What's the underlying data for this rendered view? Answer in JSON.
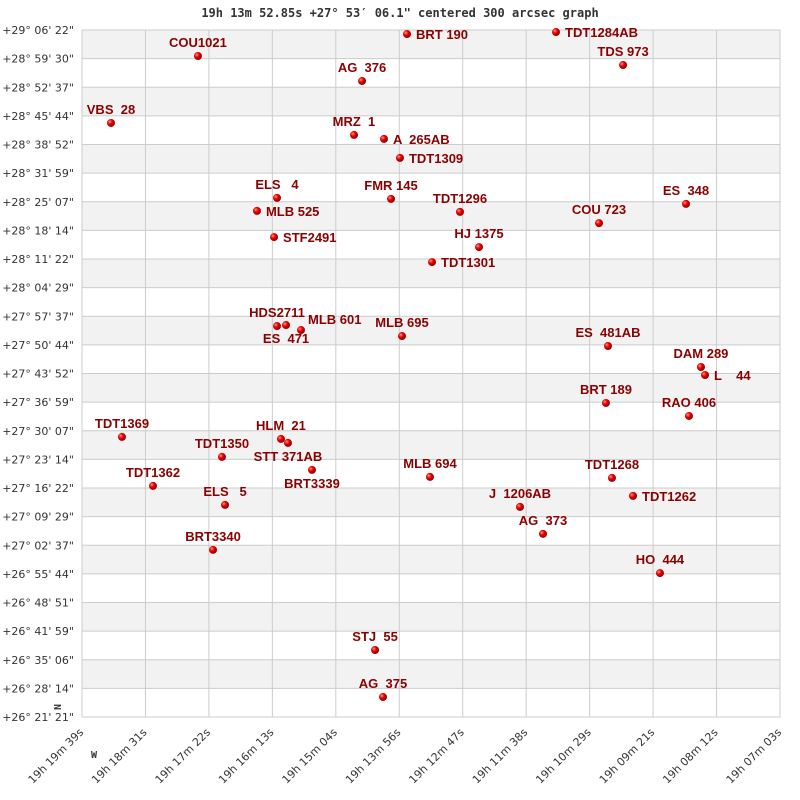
{
  "chart_data": {
    "type": "scatter",
    "title": "19h 13m 52.85s +27° 53′ 06.1\" centered 300 arcsec graph",
    "xlabel": "",
    "ylabel": "",
    "x_axis": "right ascension",
    "x_reversed": true,
    "xlim": [
      "19h19m39s",
      "19h07m03s"
    ],
    "ylim_deg": [
      26.3558,
      29.1061
    ],
    "grid": true,
    "striped_rows": true,
    "x_tick_labels": [
      "19h 19m 39s",
      "19h 18m 31s",
      "19h 17m 22s",
      "19h 16m 13s",
      "19h 15m 04s",
      "19h 13m 56s",
      "19h 12m 47s",
      "19h 11m 38s",
      "19h 10m 29s",
      "19h 09m 21s",
      "19h 08m 12s",
      "19h 07m 03s"
    ],
    "y_tick_labels": [
      "+29° 06' 22\"",
      "+28° 59' 30\"",
      "+28° 52' 37\"",
      "+28° 45' 44\"",
      "+28° 38' 52\"",
      "+28° 31' 59\"",
      "+28° 25' 07\"",
      "+28° 18' 14\"",
      "+28° 11' 22\"",
      "+28° 04' 29\"",
      "+27° 57' 37\"",
      "+27° 50' 44\"",
      "+27° 43' 52\"",
      "+27° 36' 59\"",
      "+27° 30' 07\"",
      "+27° 23' 14\"",
      "+27° 16' 22\"",
      "+27° 09' 29\"",
      "+27° 02' 37\"",
      "+26° 55' 44\"",
      "+26° 48' 51\"",
      "+26° 41' 59\"",
      "+26° 35' 06\"",
      "+26° 28' 14\"",
      "+26° 21' 21\""
    ],
    "compass": {
      "north": "N",
      "west": "W"
    },
    "colors": {
      "star": "#dd0000",
      "label": "#8b0000",
      "grid": "#cccccc",
      "stripe": "#f2f2f2"
    },
    "points": [
      {
        "name": "COU1021",
        "ra": "19h17m33.4s",
        "dec": 29.002
      },
      {
        "name": "AG  376",
        "ra": "19h14m35.7s",
        "dec": 28.902
      },
      {
        "name": "VBS  28",
        "ra": "19h19m07.6s",
        "dec": 28.734
      },
      {
        "name": "MRZ  1",
        "ra": "19h14m44.4s",
        "dec": 28.686
      },
      {
        "name": "A  265AB",
        "ra": "19h14m11.9s",
        "dec": 28.67
      },
      {
        "name": "TDT1309",
        "ra": "19h13m54.6s",
        "dec": 28.594
      },
      {
        "name": "BRT 190",
        "ra": "19h13m47.0s",
        "dec": 29.09
      },
      {
        "name": "TDT1284AB",
        "ra": "19h11m05.6s",
        "dec": 29.098
      },
      {
        "name": "TDS 973",
        "ra": "19h09m53.0s",
        "dec": 28.966
      },
      {
        "name": "ELS   4",
        "ra": "19h16m07.8s",
        "dec": 28.434
      },
      {
        "name": "MLB 525",
        "ra": "19h16m29.5s",
        "dec": 28.382
      },
      {
        "name": "STF2491",
        "ra": "19h16m11.0s",
        "dec": 28.277
      },
      {
        "name": "FMR 145",
        "ra": "19h14m04.3s",
        "dec": 28.43
      },
      {
        "name": "TDT1296",
        "ra": "19h12m49.6s",
        "dec": 28.378
      },
      {
        "name": "HJ 1375",
        "ra": "19h12m29.0s",
        "dec": 28.237
      },
      {
        "name": "TDT1301",
        "ra": "19h13m19.9s",
        "dec": 28.177
      },
      {
        "name": "COU 723",
        "ra": "19h10m19.0s",
        "dec": 28.333
      },
      {
        "name": "ES  348",
        "ra": "19h08m44.8s",
        "dec": 28.41
      },
      {
        "name": "HDS2711",
        "ra": "19h16m07.8s",
        "dec": 27.921
      },
      {
        "name": "ES  471",
        "ra": "19h15m58.0s",
        "dec": 27.925
      },
      {
        "name": "MLB 601",
        "ra": "19h15m41.8s",
        "dec": 27.905
      },
      {
        "name": "MLB 695",
        "ra": "19h13m52.4s",
        "dec": 27.881
      },
      {
        "name": "ES  481AB",
        "ra": "19h10m09.3s",
        "dec": 27.841
      },
      {
        "name": "DAM 289",
        "ra": "19h08m28.6s",
        "dec": 27.757
      },
      {
        "name": "L    44",
        "ra": "19h08m24.2s",
        "dec": 27.725
      },
      {
        "name": "BRT 189",
        "ra": "19h10m11.5s",
        "dec": 27.613
      },
      {
        "name": "RAO 406",
        "ra": "19h08m41.6s",
        "dec": 27.561
      },
      {
        "name": "TDT1369",
        "ra": "19h18m55.7s",
        "dec": 27.477
      },
      {
        "name": "HLM  21",
        "ra": "19h16m03.5s",
        "dec": 27.469
      },
      {
        "name": "STT 371AB",
        "ra": "19h15m55.9s",
        "dec": 27.453
      },
      {
        "name": "TDT1350",
        "ra": "19h17m07.4s",
        "dec": 27.397
      },
      {
        "name": "BRT3339",
        "ra": "19h15m29.9s",
        "dec": 27.345
      },
      {
        "name": "MLB 694",
        "ra": "19h13m22.1s",
        "dec": 27.317
      },
      {
        "name": "TDT1268",
        "ra": "19h10m05.0s",
        "dec": 27.313
      },
      {
        "name": "TDT1362",
        "ra": "19h18m22.1s",
        "dec": 27.281
      },
      {
        "name": "TDT1262",
        "ra": "19h09m42.2s",
        "dec": 27.241
      },
      {
        "name": "ELS   5",
        "ra": "19h17m04.1s",
        "dec": 27.205
      },
      {
        "name": "J  1206AB",
        "ra": "19h11m44.6s",
        "dec": 27.197
      },
      {
        "name": "AG  373",
        "ra": "19h11m19.7s",
        "dec": 27.089
      },
      {
        "name": "BRT3340",
        "ra": "19h17m17.1s",
        "dec": 27.025
      },
      {
        "name": "HO  444",
        "ra": "19h09m13.0s",
        "dec": 26.932
      },
      {
        "name": "STJ  55",
        "ra": "19h14m21.6s",
        "dec": 26.624
      },
      {
        "name": "AG  375",
        "ra": "19h14m13.0s",
        "dec": 26.436
      }
    ]
  }
}
